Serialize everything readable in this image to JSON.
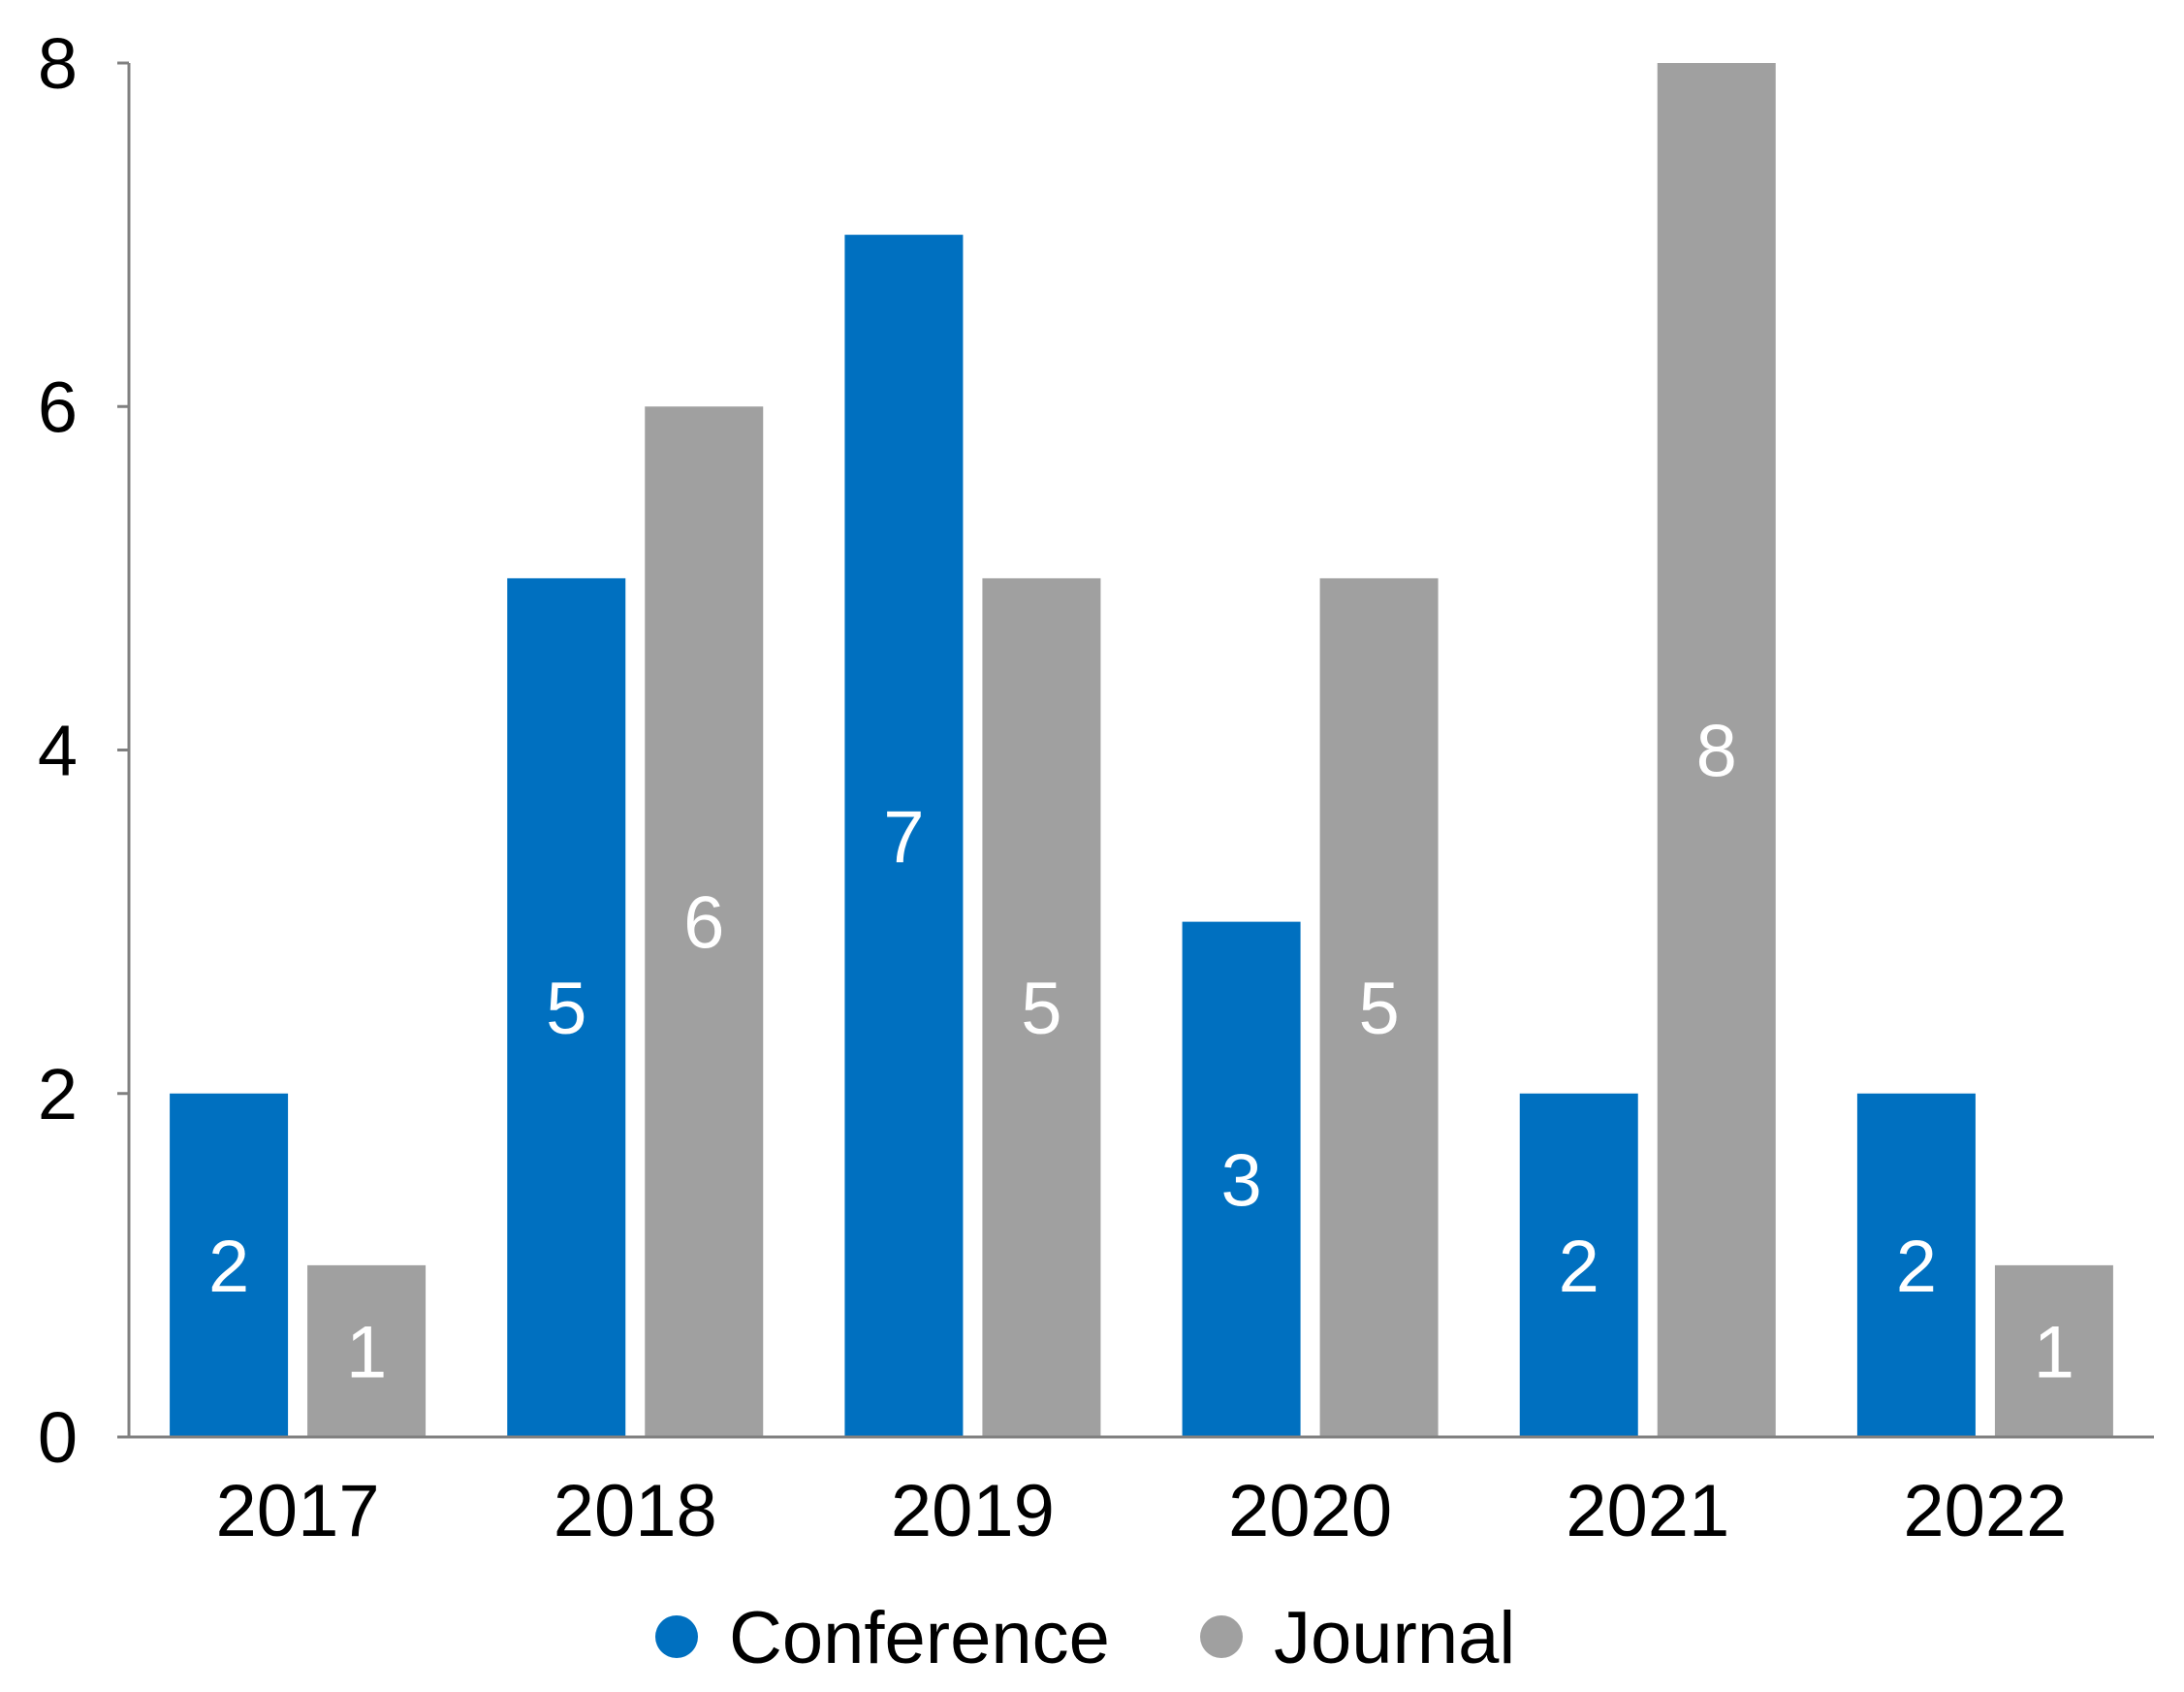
{
  "chart_data": {
    "type": "bar",
    "title": "",
    "xlabel": "",
    "ylabel": "",
    "categories": [
      "2017",
      "2018",
      "2019",
      "2020",
      "2021",
      "2022"
    ],
    "series": [
      {
        "name": "Conference",
        "color": "#0070C0",
        "values": [
          2,
          5,
          7,
          3,
          2,
          2
        ]
      },
      {
        "name": "Journal",
        "color": "#A0A0A0",
        "values": [
          1,
          6,
          5,
          5,
          8,
          1
        ]
      }
    ],
    "ylim": [
      0,
      8
    ],
    "yticks": [
      "0",
      "2",
      "4",
      "6",
      "8"
    ],
    "data_labels": true,
    "grid": false,
    "legend": {
      "placement": "bottom",
      "entries": [
        "Conference",
        "Journal"
      ]
    }
  }
}
